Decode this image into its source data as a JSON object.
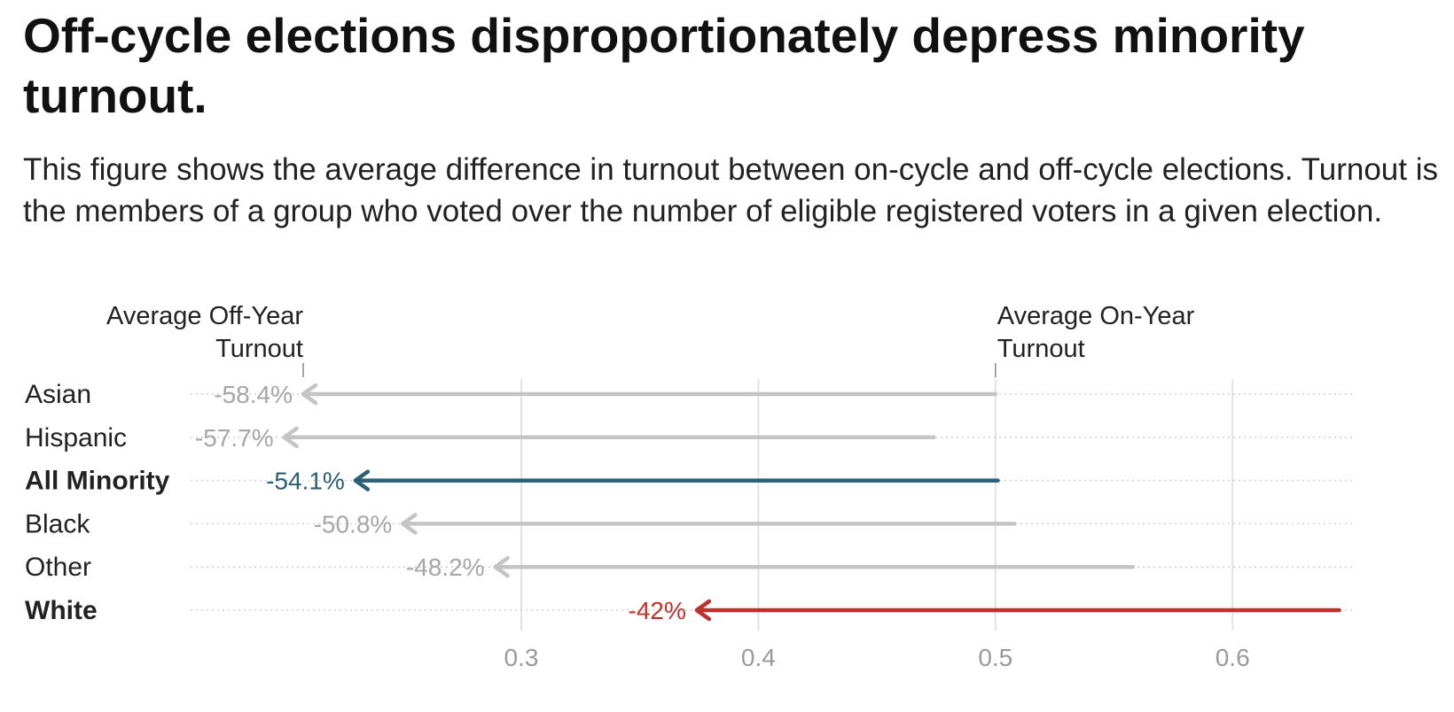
{
  "title": "Off-cycle elections disproportionately depress minority turnout.",
  "subtitle": "This figure shows the average difference in turnout between on-cycle and off-cycle elections. Turnout is the members of a group who voted over the number of eligible registered voters in a given election.",
  "chart_data": {
    "type": "arrow",
    "title": "Off-cycle elections disproportionately depress minority turnout.",
    "xlim": [
      0.16,
      0.65
    ],
    "x_ticks": [
      0.3,
      0.4,
      0.5,
      0.6
    ],
    "x_tick_labels": [
      "0.3",
      "0.4",
      "0.5",
      "0.6"
    ],
    "grid": true,
    "annotations": [
      {
        "name": "off-year-annotation",
        "lines": [
          "Average Off-Year",
          "Turnout"
        ],
        "x": 0.208
      },
      {
        "name": "on-year-annotation",
        "lines": [
          "Average On-Year",
          "Turnout"
        ],
        "x": 0.5
      }
    ],
    "categories": [
      "Asian",
      "Hispanic",
      "All Minority",
      "Black",
      "Other",
      "White"
    ],
    "series": [
      {
        "category": "Asian",
        "on_cycle": 0.5,
        "off_cycle": 0.208,
        "label": "-58.4%",
        "color": "#c4c4c4",
        "bold": false
      },
      {
        "category": "Hispanic",
        "on_cycle": 0.474,
        "off_cycle": 0.2,
        "label": "-57.7%",
        "color": "#c4c4c4",
        "bold": false
      },
      {
        "category": "All Minority",
        "on_cycle": 0.501,
        "off_cycle": 0.23,
        "label": "-54.1%",
        "color": "#2b5f78",
        "bold": true
      },
      {
        "category": "Black",
        "on_cycle": 0.508,
        "off_cycle": 0.25,
        "label": "-50.8%",
        "color": "#c4c4c4",
        "bold": false
      },
      {
        "category": "Other",
        "on_cycle": 0.558,
        "off_cycle": 0.289,
        "label": "-48.2%",
        "color": "#c4c4c4",
        "bold": false
      },
      {
        "category": "White",
        "on_cycle": 0.645,
        "off_cycle": 0.374,
        "label": "-42%",
        "color": "#c0312b",
        "bold": true
      }
    ],
    "colors": {
      "highlight_minority": "#2b5f78",
      "highlight_white": "#c0312b",
      "default": "#c4c4c4",
      "grid": "#e2e2e2",
      "tick": "#9a9a9a"
    }
  }
}
